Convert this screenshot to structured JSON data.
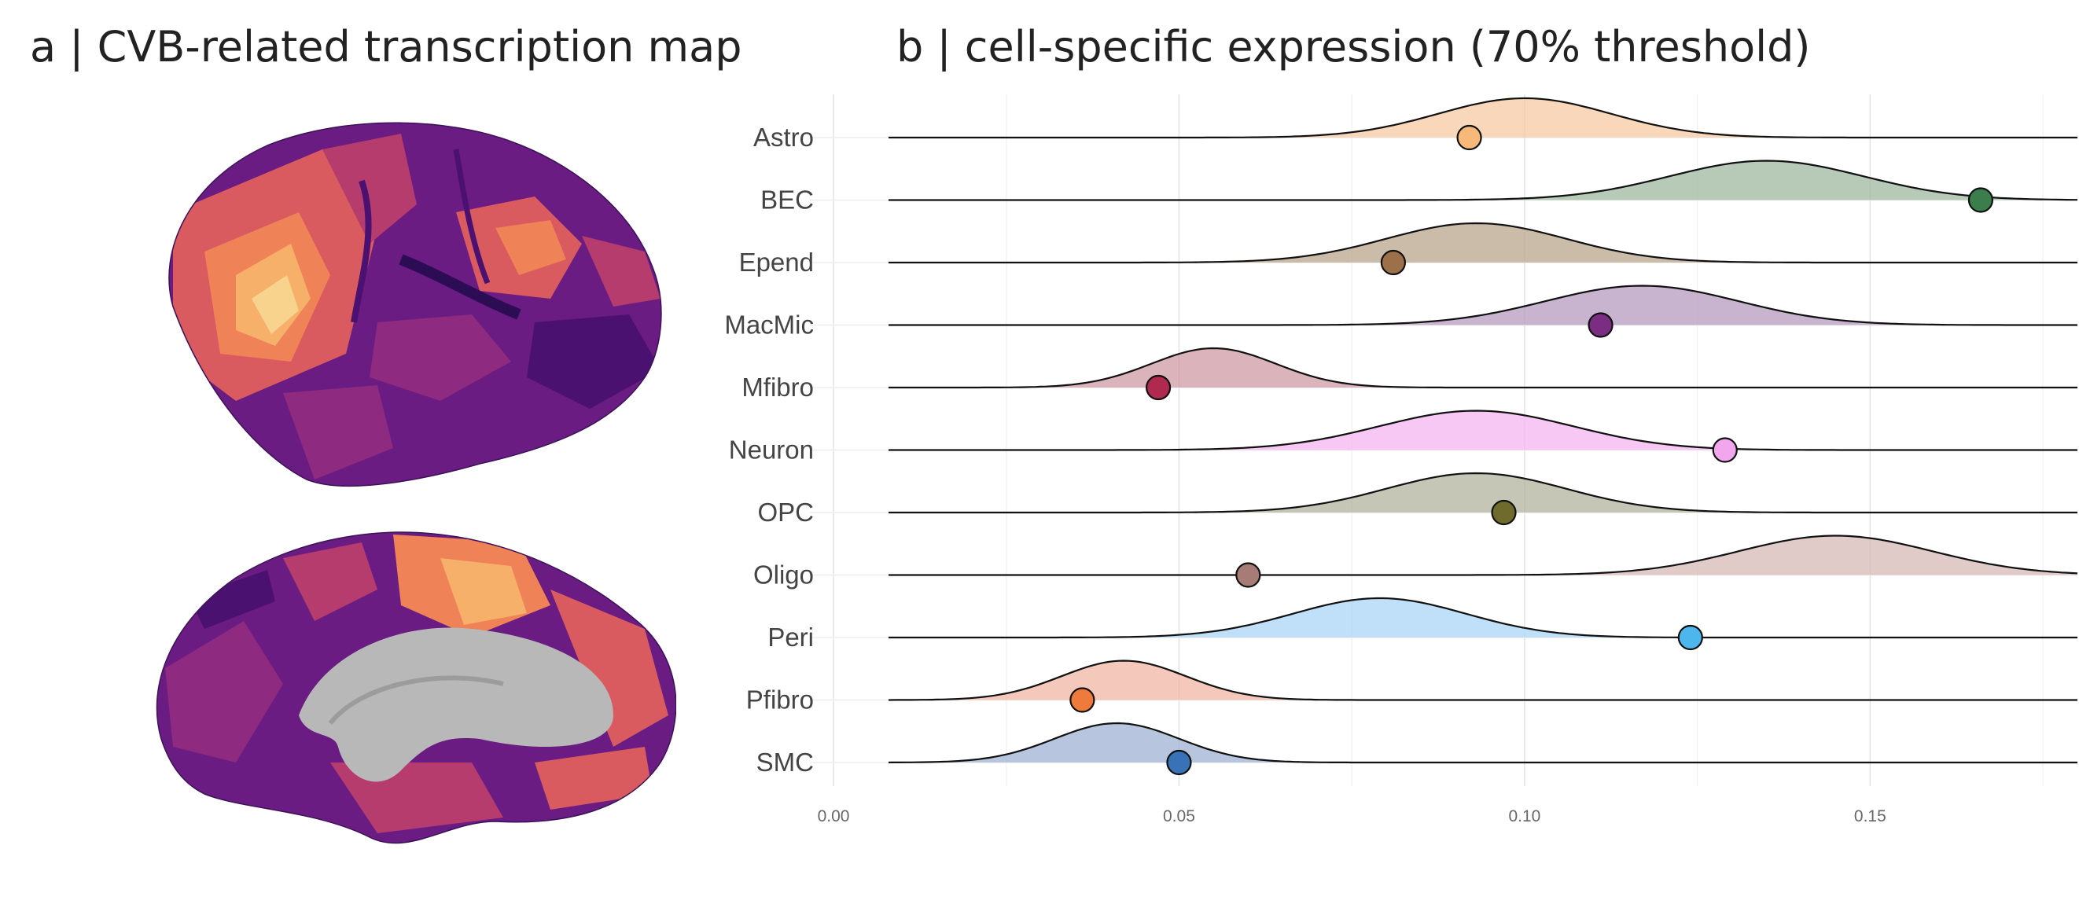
{
  "panels": {
    "a_title": "a | CVB-related transcription map",
    "b_title": "b | cell-specific expression (70% threshold)"
  },
  "colors": {
    "brain_palette": [
      "#2c0d55",
      "#4a1170",
      "#6a1c83",
      "#8e2a7f",
      "#b63c6e",
      "#d95a5f",
      "#ef8256",
      "#f6b06a",
      "#f8d38e"
    ],
    "brain_medial_wall": "#b8b8b8"
  },
  "chart_data": {
    "type": "ridgeline",
    "title": "b | cell-specific expression (70% threshold)",
    "xlim": [
      0,
      0.18
    ],
    "x_ticks": [
      0,
      0.05,
      0.1,
      0.15
    ],
    "x_tick_labels": [
      "0.00",
      "0.05",
      "0.10",
      "0.15"
    ],
    "grid": true,
    "series": [
      {
        "name": "Astro",
        "color": "#f6c9a3",
        "peak": 0.1,
        "sd": 0.0125,
        "point": 0.092,
        "point_color": "#f7b97a"
      },
      {
        "name": "BEC",
        "color": "#9fb89f",
        "peak": 0.135,
        "sd": 0.014,
        "point": 0.166,
        "point_color": "#3b7d4b"
      },
      {
        "name": "Epend",
        "color": "#b9a58c",
        "peak": 0.093,
        "sd": 0.013,
        "point": 0.081,
        "point_color": "#9c7048"
      },
      {
        "name": "MacMic",
        "color": "#b59bbd",
        "peak": 0.117,
        "sd": 0.014,
        "point": 0.111,
        "point_color": "#7b2d82"
      },
      {
        "name": "Mfibro",
        "color": "#cf9aa3",
        "peak": 0.055,
        "sd": 0.009,
        "point": 0.047,
        "point_color": "#b02a50"
      },
      {
        "name": "Neuron",
        "color": "#f3b5ef",
        "peak": 0.093,
        "sd": 0.014,
        "point": 0.129,
        "point_color": "#f1a6ee"
      },
      {
        "name": "OPC",
        "color": "#b2b39c",
        "peak": 0.093,
        "sd": 0.013,
        "point": 0.097,
        "point_color": "#6e6b2c"
      },
      {
        "name": "Oligo",
        "color": "#d6b9b5",
        "peak": 0.145,
        "sd": 0.014,
        "point": 0.06,
        "point_color": "#a77c77"
      },
      {
        "name": "Peri",
        "color": "#a9d6f5",
        "peak": 0.079,
        "sd": 0.0125,
        "point": 0.124,
        "point_color": "#4db6ec"
      },
      {
        "name": "Pfibro",
        "color": "#f0b7a5",
        "peak": 0.042,
        "sd": 0.009,
        "point": 0.036,
        "point_color": "#ee7a3c"
      },
      {
        "name": "SMC",
        "color": "#9fb3d3",
        "peak": 0.041,
        "sd": 0.009,
        "point": 0.05,
        "point_color": "#3a72b8"
      }
    ]
  }
}
